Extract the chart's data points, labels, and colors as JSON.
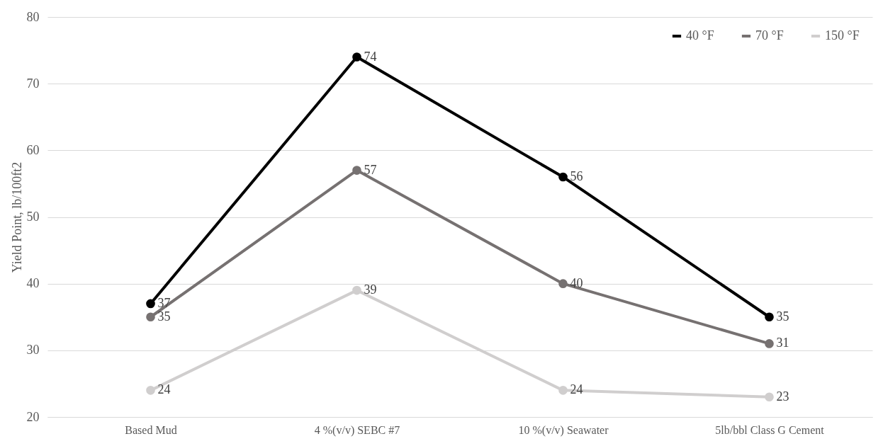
{
  "chart_data": {
    "type": "line",
    "ylabel": "Yield Point, lb/100ft2",
    "categories": [
      "Based Mud",
      "4 %(v/v) SEBC #7",
      "10 %(v/v) Seawater",
      "5lb/bbl Class G Cement"
    ],
    "series": [
      {
        "name": "40 °F",
        "color": "#000000",
        "values": [
          37,
          74,
          56,
          35
        ]
      },
      {
        "name": "70 °F",
        "color": "#767171",
        "values": [
          35,
          57,
          40,
          31
        ]
      },
      {
        "name": "150 °F",
        "color": "#d0cece",
        "values": [
          24,
          39,
          24,
          23
        ]
      }
    ],
    "ylim": [
      20,
      80
    ],
    "yticks": [
      20,
      30,
      40,
      50,
      60,
      70,
      80
    ],
    "grid": "y",
    "legend": "top right",
    "marker": "circle",
    "line_style": "solid",
    "data_labels": true
  }
}
